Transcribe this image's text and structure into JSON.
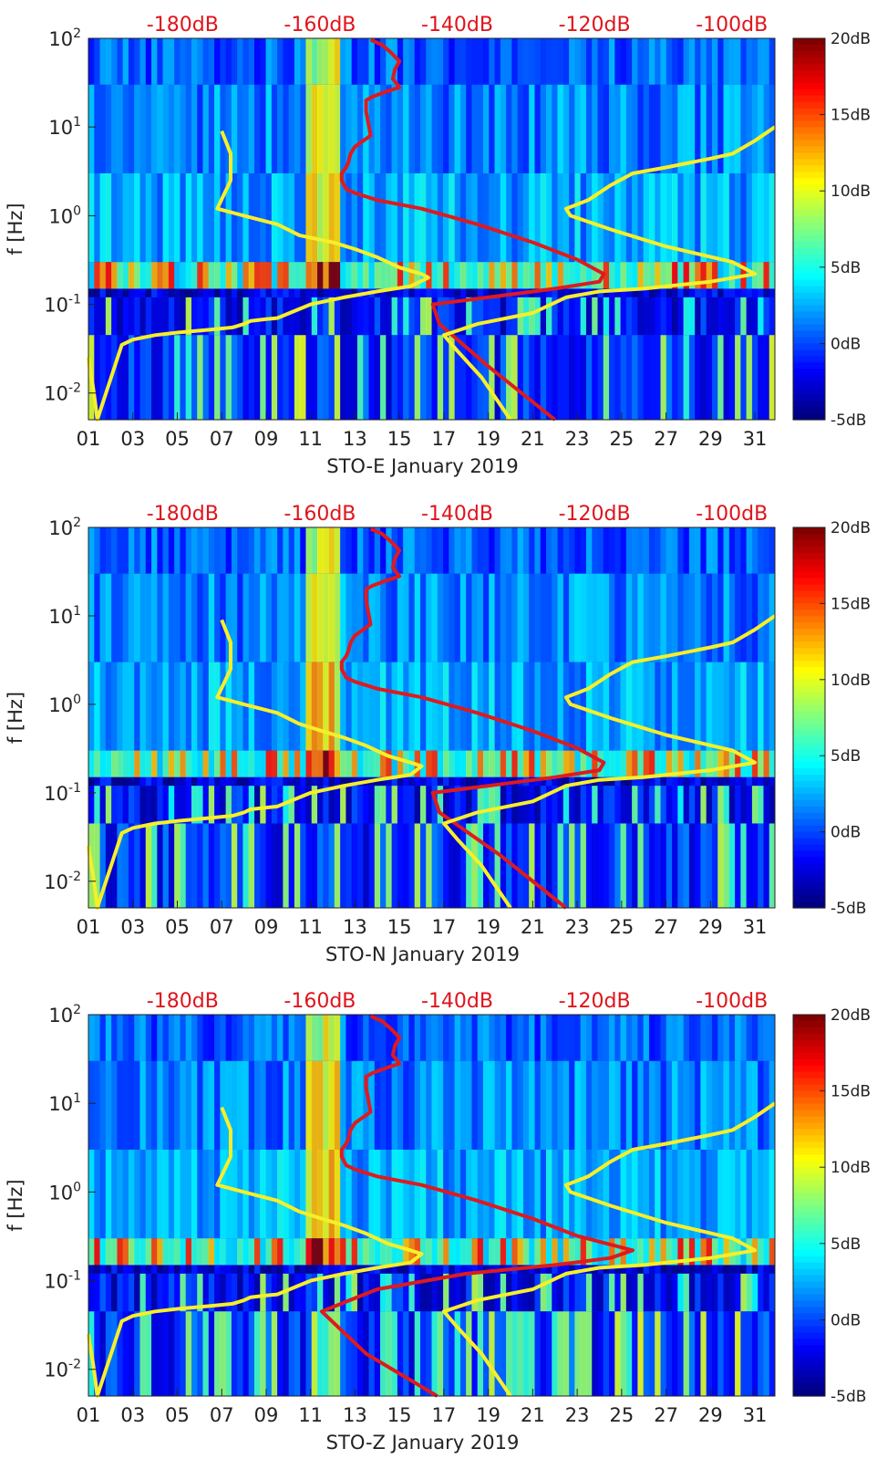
{
  "chart_data": [
    {
      "type": "heatmap",
      "title": "STO-E January 2019",
      "xlabel": "STO-E January 2019",
      "ylabel": "f [Hz]",
      "y_scale": "log",
      "ylim": [
        0.005,
        100
      ],
      "xlim": [
        1,
        31.9
      ],
      "x_tick_labels": [
        "01",
        "03",
        "05",
        "07",
        "09",
        "11",
        "13",
        "15",
        "17",
        "19",
        "21",
        "23",
        "25",
        "27",
        "29",
        "31"
      ],
      "y_tick_labels": [
        "10^-2",
        "10^-1",
        "10^0",
        "10^1",
        "10^2"
      ],
      "top_axis_labels": [
        "-180dB",
        "-160dB",
        "-140dB",
        "-120dB",
        "-100dB"
      ],
      "colorbar": {
        "labels": [
          "20dB",
          "15dB",
          "10dB",
          "5dB",
          "0dB",
          "-5dB"
        ],
        "range": [
          -5,
          20
        ],
        "colormap": "jet"
      },
      "series": [
        {
          "name": "yellow-curve",
          "color": "#f7ef29",
          "x": [
            1.0,
            1.05,
            1.2,
            1.3,
            1.4,
            2.5,
            3.0,
            4.0,
            5.0,
            6.5,
            7.5,
            8.0,
            8.3,
            9.0,
            9.5,
            11,
            12.5,
            14,
            15.5,
            16.3,
            16.0,
            15.0,
            14.0,
            13.0,
            12.0,
            10.5,
            9.5,
            8.0,
            6.8,
            7.4,
            7.4,
            7.0
          ],
          "y": [
            0.025,
            0.02,
            0.012,
            0.008,
            0.005,
            0.035,
            0.04,
            0.045,
            0.048,
            0.052,
            0.055,
            0.06,
            0.065,
            0.068,
            0.07,
            0.1,
            0.12,
            0.14,
            0.16,
            0.2,
            0.22,
            0.26,
            0.34,
            0.42,
            0.5,
            0.6,
            0.8,
            1.0,
            1.2,
            2.5,
            5,
            9
          ]
        },
        {
          "name": "red-curve",
          "color": "#de1a1f",
          "x": [
            13.7,
            14.2,
            14.6,
            15.0,
            14.8,
            14.7,
            15.0,
            14.4,
            13.8,
            13.5,
            13.5,
            13.6,
            13.7,
            13.0,
            12.8,
            12.7,
            12.6,
            12.4,
            12.4,
            12.6,
            13.0,
            14.0,
            16.0,
            18.5,
            21.0,
            23.0,
            24.2,
            24.0,
            22.0,
            19.0,
            16.5,
            16.8,
            19.0,
            22.0
          ],
          "y": [
            96,
            85,
            70,
            55,
            45,
            35,
            28,
            25,
            22,
            20,
            15,
            11,
            8,
            6,
            5,
            4,
            3.5,
            3,
            2.5,
            2,
            1.8,
            1.5,
            1.2,
            0.8,
            0.5,
            0.32,
            0.22,
            0.18,
            0.15,
            0.12,
            0.1,
            0.06,
            0.02,
            0.005
          ]
        },
        {
          "name": "yellow-curve-right",
          "color": "#f7ef29",
          "x": [
            31.9,
            31.0,
            30.0,
            29.0,
            27.0,
            25.5,
            24.5,
            23.5,
            22.5,
            22.7,
            24.5,
            27.0,
            30.0,
            31.0,
            29.0,
            26.0,
            24.0,
            22.5,
            21.0,
            18.5,
            17.0,
            17.6,
            18.7,
            20.0
          ],
          "y": [
            10,
            7,
            5,
            4.4,
            3.5,
            3.0,
            2.2,
            1.5,
            1.2,
            1.0,
            0.7,
            0.45,
            0.3,
            0.22,
            0.18,
            0.15,
            0.14,
            0.12,
            0.08,
            0.06,
            0.045,
            0.03,
            0.015,
            0.005
          ]
        }
      ]
    },
    {
      "type": "heatmap",
      "title": "STO-N January 2019",
      "xlabel": "STO-N January 2019",
      "ylabel": "f [Hz]",
      "y_scale": "log",
      "ylim": [
        0.005,
        100
      ],
      "xlim": [
        1,
        31.9
      ],
      "x_tick_labels": [
        "01",
        "03",
        "05",
        "07",
        "09",
        "11",
        "13",
        "15",
        "17",
        "19",
        "21",
        "23",
        "25",
        "27",
        "29",
        "31"
      ],
      "y_tick_labels": [
        "10^-2",
        "10^-1",
        "10^0",
        "10^1",
        "10^2"
      ],
      "top_axis_labels": [
        "-180dB",
        "-160dB",
        "-140dB",
        "-120dB",
        "-100dB"
      ],
      "colorbar": {
        "labels": [
          "20dB",
          "15dB",
          "10dB",
          "5dB",
          "0dB",
          "-5dB"
        ],
        "range": [
          -5,
          20
        ],
        "colormap": "jet"
      },
      "series": [
        {
          "name": "yellow-curve",
          "color": "#f7ef29",
          "x": [
            1.0,
            1.05,
            1.2,
            1.3,
            1.4,
            2.5,
            3.0,
            4.0,
            5.0,
            6.5,
            7.5,
            8.0,
            8.3,
            9.0,
            9.5,
            11,
            12.5,
            14,
            15.5,
            16.0,
            15.5,
            14.5,
            13.5,
            12.5,
            11.5,
            10.5,
            9.5,
            8.0,
            6.8,
            7.4,
            7.4,
            7.0
          ],
          "y": [
            0.025,
            0.02,
            0.012,
            0.008,
            0.005,
            0.035,
            0.04,
            0.045,
            0.048,
            0.052,
            0.055,
            0.06,
            0.065,
            0.068,
            0.07,
            0.1,
            0.12,
            0.14,
            0.16,
            0.2,
            0.22,
            0.26,
            0.34,
            0.42,
            0.5,
            0.6,
            0.8,
            1.0,
            1.2,
            2.5,
            5,
            9
          ]
        },
        {
          "name": "red-curve",
          "color": "#de1a1f",
          "x": [
            13.7,
            14.2,
            14.6,
            15.0,
            14.8,
            14.7,
            15.0,
            14.4,
            13.8,
            13.5,
            13.5,
            13.6,
            13.7,
            13.0,
            12.8,
            12.7,
            12.6,
            12.4,
            12.4,
            12.6,
            13.0,
            14.0,
            16.0,
            18.5,
            21.0,
            23.0,
            24.2,
            24.0,
            22.0,
            19.0,
            16.5,
            16.8,
            19.5,
            22.5
          ],
          "y": [
            96,
            85,
            70,
            55,
            45,
            35,
            28,
            25,
            22,
            20,
            15,
            11,
            8,
            6,
            5,
            4,
            3.5,
            3,
            2.5,
            2,
            1.8,
            1.5,
            1.2,
            0.8,
            0.5,
            0.32,
            0.22,
            0.18,
            0.15,
            0.12,
            0.1,
            0.06,
            0.02,
            0.005
          ]
        },
        {
          "name": "yellow-curve-right",
          "color": "#f7ef29",
          "x": [
            31.9,
            31.0,
            30.0,
            29.0,
            27.0,
            25.5,
            24.5,
            23.5,
            22.5,
            22.7,
            24.5,
            27.0,
            30.0,
            31.0,
            29.0,
            26.0,
            24.0,
            22.5,
            21.0,
            18.5,
            17.0,
            17.6,
            18.7,
            20.0
          ],
          "y": [
            10,
            7,
            5,
            4.4,
            3.5,
            3.0,
            2.2,
            1.5,
            1.2,
            1.0,
            0.7,
            0.45,
            0.3,
            0.22,
            0.18,
            0.15,
            0.14,
            0.12,
            0.08,
            0.06,
            0.045,
            0.03,
            0.015,
            0.005
          ]
        }
      ]
    },
    {
      "type": "heatmap",
      "title": "STO-Z January 2019",
      "xlabel": "STO-Z January 2019",
      "ylabel": "f [Hz]",
      "y_scale": "log",
      "ylim": [
        0.005,
        100
      ],
      "xlim": [
        1,
        31.9
      ],
      "x_tick_labels": [
        "01",
        "03",
        "05",
        "07",
        "09",
        "11",
        "13",
        "15",
        "17",
        "19",
        "21",
        "23",
        "25",
        "27",
        "29",
        "31"
      ],
      "y_tick_labels": [
        "10^-2",
        "10^-1",
        "10^0",
        "10^1",
        "10^2"
      ],
      "top_axis_labels": [
        "-180dB",
        "-160dB",
        "-140dB",
        "-120dB",
        "-100dB"
      ],
      "colorbar": {
        "labels": [
          "20dB",
          "15dB",
          "10dB",
          "5dB",
          "0dB",
          "-5dB"
        ],
        "range": [
          -5,
          20
        ],
        "colormap": "jet"
      },
      "series": [
        {
          "name": "yellow-curve",
          "color": "#f7ef29",
          "x": [
            1.0,
            1.05,
            1.2,
            1.3,
            1.4,
            2.5,
            3.0,
            4.0,
            5.0,
            6.5,
            7.5,
            8.0,
            8.3,
            9.0,
            9.5,
            11,
            12.5,
            14,
            15.5,
            16.0,
            15.5,
            14.5,
            13.5,
            12.5,
            11.5,
            10.5,
            9.5,
            8.0,
            6.8,
            7.4,
            7.4,
            7.0
          ],
          "y": [
            0.025,
            0.02,
            0.012,
            0.008,
            0.005,
            0.035,
            0.04,
            0.045,
            0.048,
            0.052,
            0.055,
            0.06,
            0.065,
            0.068,
            0.07,
            0.1,
            0.12,
            0.14,
            0.16,
            0.2,
            0.22,
            0.26,
            0.34,
            0.42,
            0.5,
            0.6,
            0.8,
            1.0,
            1.2,
            2.5,
            5,
            9
          ]
        },
        {
          "name": "red-curve",
          "color": "#de1a1f",
          "x": [
            13.7,
            14.2,
            14.6,
            15.0,
            14.8,
            14.7,
            15.0,
            14.4,
            13.8,
            13.5,
            13.5,
            13.6,
            13.7,
            13.0,
            12.8,
            12.7,
            12.6,
            12.4,
            12.4,
            12.6,
            13.0,
            14.0,
            16.0,
            18.5,
            21.0,
            23.0,
            25.5,
            24.5,
            22.0,
            18.0,
            14.0,
            11.5,
            13.5,
            16.7
          ],
          "y": [
            96,
            85,
            70,
            55,
            45,
            35,
            28,
            25,
            22,
            20,
            15,
            11,
            8,
            6,
            5,
            4,
            3.5,
            3,
            2.5,
            2,
            1.8,
            1.5,
            1.2,
            0.8,
            0.5,
            0.32,
            0.22,
            0.18,
            0.15,
            0.12,
            0.08,
            0.045,
            0.015,
            0.005
          ]
        },
        {
          "name": "yellow-curve-right",
          "color": "#f7ef29",
          "x": [
            31.9,
            31.0,
            30.0,
            29.0,
            27.0,
            25.5,
            24.5,
            23.5,
            22.5,
            22.7,
            24.5,
            27.0,
            30.0,
            31.0,
            29.0,
            26.0,
            24.0,
            22.5,
            21.0,
            18.5,
            17.0,
            17.6,
            18.7,
            20.0
          ],
          "y": [
            10,
            7,
            5,
            4.4,
            3.5,
            3.0,
            2.2,
            1.5,
            1.2,
            1.0,
            0.7,
            0.45,
            0.3,
            0.22,
            0.18,
            0.15,
            0.14,
            0.12,
            0.08,
            0.06,
            0.045,
            0.03,
            0.015,
            0.005
          ]
        }
      ]
    }
  ]
}
